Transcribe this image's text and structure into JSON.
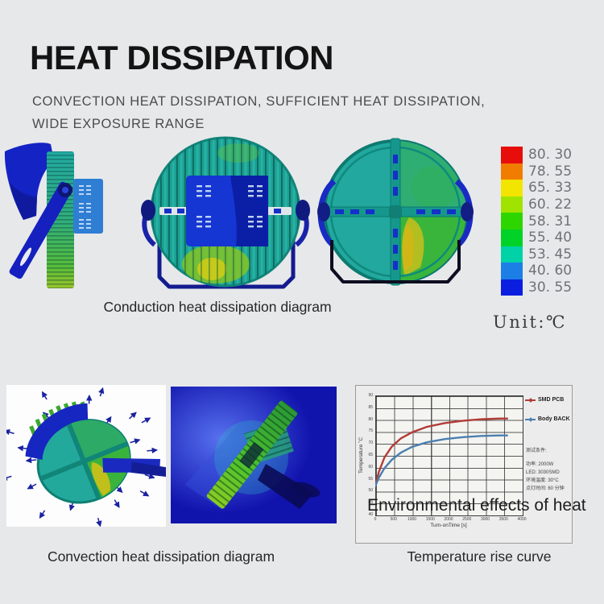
{
  "page": {
    "background": "#e7e8ea"
  },
  "header": {
    "title": "HEAT DISSIPATION",
    "subtitle_line1": "CONVECTION HEAT DISSIPATION, SUFFICIENT HEAT DISSIPATION,",
    "subtitle_line2": "WIDE EXPOSURE RANGE"
  },
  "conduction_section": {
    "caption": "Conduction heat dissipation diagram",
    "temperature_scale": {
      "unit_label": "Unit:℃",
      "items": [
        {
          "value": "80. 30",
          "color": "#e60d0a"
        },
        {
          "value": "78. 55",
          "color": "#f07c00"
        },
        {
          "value": "65. 33",
          "color": "#f2e500"
        },
        {
          "value": "60. 22",
          "color": "#a0e300"
        },
        {
          "value": "58. 31",
          "color": "#2ed600"
        },
        {
          "value": "55. 40",
          "color": "#00d228"
        },
        {
          "value": "53. 45",
          "color": "#00d2a8"
        },
        {
          "value": "40. 60",
          "color": "#1b7fe6"
        },
        {
          "value": "30. 55",
          "color": "#0b1ee0"
        }
      ]
    }
  },
  "convection_section": {
    "caption": "Convection heat dissipation diagram"
  },
  "chart_section": {
    "caption": "Temperature rise curve",
    "overlay_text": "Environmental effects of heat"
  },
  "chart_data": {
    "type": "line",
    "title": "",
    "xlabel": "Turn-onTime [s]",
    "ylabel": "Temperature ˚C",
    "xlim": [
      0,
      4000
    ],
    "ylim": [
      40,
      90
    ],
    "xticks": [
      0,
      500,
      1000,
      1500,
      2000,
      2500,
      3000,
      3500,
      4000
    ],
    "yticks": [
      40,
      45,
      50,
      55,
      60,
      65,
      70,
      75,
      80,
      85,
      90
    ],
    "grid": true,
    "legend_position": "right-outside",
    "x": [
      0,
      100,
      250,
      450,
      700,
      1000,
      1400,
      1900,
      2400,
      2900,
      3400,
      3600
    ],
    "series": [
      {
        "name": "SMD PCB",
        "color": "#b23b36",
        "values": [
          52,
          58,
          64,
          68.5,
          72,
          74.5,
          76.8,
          78.4,
          79.4,
          80,
          80.3,
          80.3
        ]
      },
      {
        "name": "Body BACK",
        "color": "#4b7fb0",
        "values": [
          52,
          55.5,
          59.5,
          63,
          66,
          68.4,
          70.3,
          71.7,
          72.5,
          73,
          73.2,
          73.2
        ]
      }
    ],
    "annotations": [
      "测试条件:",
      "功率: 2000W",
      "LED: 3030SMD",
      "环境温度: 30°C",
      "点灯时间: 60 分钟"
    ]
  }
}
